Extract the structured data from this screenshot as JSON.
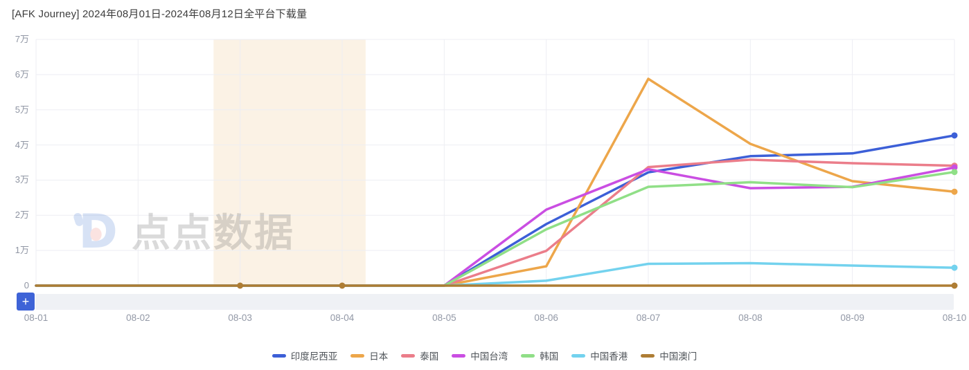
{
  "title": "[AFK Journey] 2024年08月01日-2024年08月12日全平台下载量",
  "watermark": {
    "logo": "diandian-logo",
    "text": "点点数据"
  },
  "toolbar": {
    "add_button_label": "+"
  },
  "ui": {
    "accent": "#3E63D7",
    "datazoom_track_color": "#EFF1F5",
    "grid_color": "#EDEEF3",
    "axis_label_color": "#9298A6",
    "band_color": "#FBF2E5"
  },
  "chart_data": {
    "type": "line",
    "title": "[AFK Journey] 2024年08月01日-2024年08月12日全平台下载量",
    "xlabel": "",
    "ylabel": "",
    "categories": [
      "08-01",
      "08-02",
      "08-03",
      "08-04",
      "08-05",
      "08-06",
      "08-07",
      "08-08",
      "08-09",
      "08-10"
    ],
    "y_tick_labels": [
      "0",
      "1万",
      "2万",
      "3万",
      "4万",
      "5万",
      "6万",
      "7万"
    ],
    "ylim": [
      0,
      70000
    ],
    "grid": true,
    "legend_position": "bottom",
    "highlight_band": {
      "from_index": 1.74,
      "to_index": 3.23,
      "color": "#FBF2E5"
    },
    "series": [
      {
        "id": "indonesia",
        "name": "印度尼西亚",
        "color": "#3C5FD7",
        "values": [
          0,
          0,
          0,
          0,
          0,
          17500,
          32200,
          36800,
          37600,
          42700
        ],
        "marker_indices": [
          9
        ]
      },
      {
        "id": "japan",
        "name": "日本",
        "color": "#EDA64A",
        "values": [
          0,
          0,
          0,
          0,
          0,
          5500,
          58800,
          40300,
          29700,
          26700
        ],
        "marker_indices": [
          9
        ]
      },
      {
        "id": "thailand",
        "name": "泰国",
        "color": "#EB7D8A",
        "values": [
          0,
          0,
          0,
          0,
          0,
          9900,
          33700,
          35800,
          34800,
          34100
        ],
        "marker_indices": [
          9
        ]
      },
      {
        "id": "taiwan",
        "name": "中国台湾",
        "color": "#CA4EE2",
        "values": [
          0,
          0,
          0,
          0,
          0,
          21600,
          33100,
          27700,
          28100,
          33600
        ],
        "marker_indices": [
          9
        ]
      },
      {
        "id": "korea",
        "name": "韩国",
        "color": "#90DF87",
        "values": [
          0,
          0,
          0,
          0,
          0,
          16000,
          28100,
          29400,
          28000,
          32300
        ],
        "marker_indices": [
          9
        ]
      },
      {
        "id": "hongkong",
        "name": "中国香港",
        "color": "#73D2EE",
        "values": [
          0,
          0,
          0,
          0,
          0,
          1400,
          6200,
          6400,
          5700,
          5100
        ],
        "marker_indices": [
          9
        ]
      },
      {
        "id": "macau",
        "name": "中国澳门",
        "color": "#AE7D34",
        "values": [
          0,
          0,
          0,
          0,
          0,
          0,
          0,
          0,
          0,
          0
        ],
        "marker_indices": [
          2,
          3,
          9
        ]
      }
    ]
  }
}
